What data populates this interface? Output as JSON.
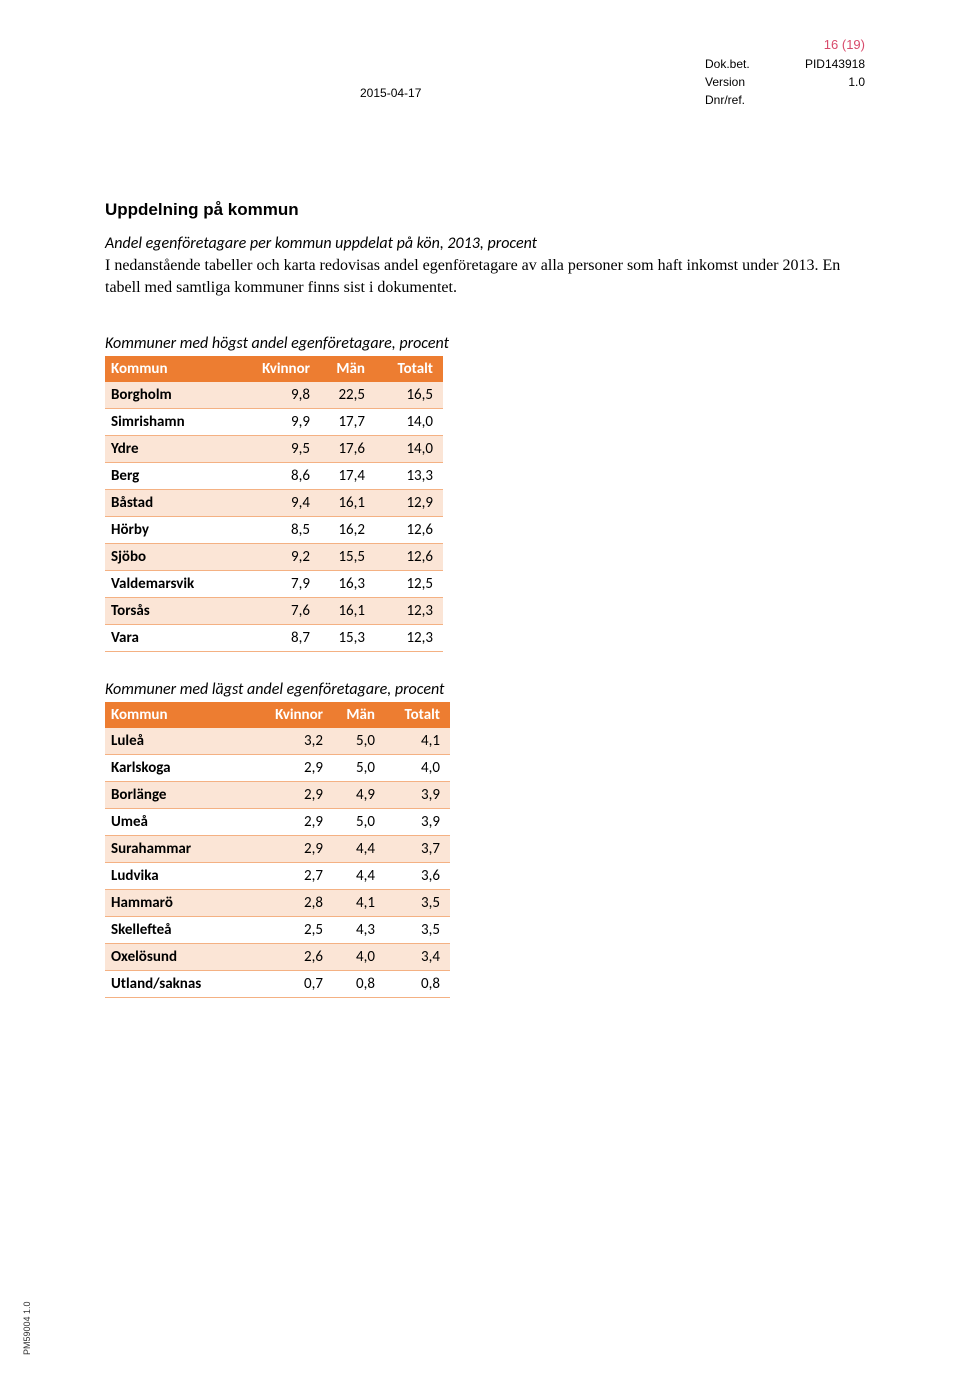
{
  "header": {
    "page_num": "16 (19)",
    "dok_label": "Dok.bet.",
    "dok_value": "PID143918",
    "version_label": "Version",
    "version_value": "1.0",
    "date": "2015-04-17",
    "dnr_label": "Dnr/ref."
  },
  "title": "Uppdelning på kommun",
  "subtitle": "Andel egenföretagare per kommun uppdelat på kön, 2013, procent",
  "body": "I nedanstående tabeller och karta redovisas andel egenföretagare av alla personer som haft inkomst under 2013. En tabell med samtliga kommuner finns sist i dokumentet.",
  "table1": {
    "title": "Kommuner med högst andel egenföretagare, procent",
    "columns": [
      "Kommun",
      "Kvinnor",
      "Män",
      "Totalt"
    ],
    "rows": [
      [
        "Borgholm",
        "9,8",
        "22,5",
        "16,5"
      ],
      [
        "Simrishamn",
        "9,9",
        "17,7",
        "14,0"
      ],
      [
        "Ydre",
        "9,5",
        "17,6",
        "14,0"
      ],
      [
        "Berg",
        "8,6",
        "17,4",
        "13,3"
      ],
      [
        "Båstad",
        "9,4",
        "16,1",
        "12,9"
      ],
      [
        "Hörby",
        "8,5",
        "16,2",
        "12,6"
      ],
      [
        "Sjöbo",
        "9,2",
        "15,5",
        "12,6"
      ],
      [
        "Valdemarsvik",
        "7,9",
        "16,3",
        "12,5"
      ],
      [
        "Torsås",
        "7,6",
        "16,1",
        "12,3"
      ],
      [
        "Vara",
        "8,7",
        "15,3",
        "12,3"
      ]
    ]
  },
  "table2": {
    "title": "Kommuner med lägst andel egenföretagare, procent",
    "columns": [
      "Kommun",
      "Kvinnor",
      "Män",
      "Totalt"
    ],
    "rows": [
      [
        "Luleå",
        "3,2",
        "5,0",
        "4,1"
      ],
      [
        "Karlskoga",
        "2,9",
        "5,0",
        "4,0"
      ],
      [
        "Borlänge",
        "2,9",
        "4,9",
        "3,9"
      ],
      [
        "Umeå",
        "2,9",
        "5,0",
        "3,9"
      ],
      [
        "Surahammar",
        "2,9",
        "4,4",
        "3,7"
      ],
      [
        "Ludvika",
        "2,7",
        "4,4",
        "3,6"
      ],
      [
        "Hammarö",
        "2,8",
        "4,1",
        "3,5"
      ],
      [
        "Skellefteå",
        "2,5",
        "4,3",
        "3,5"
      ],
      [
        "Oxelösund",
        "2,6",
        "4,0",
        "3,4"
      ],
      [
        "Utland/saknas",
        "0,7",
        "0,8",
        "0,8"
      ]
    ]
  },
  "footer": "PM59004 1.0",
  "colors": {
    "header_bg": "#ed7d31",
    "header_text": "#ffffff",
    "row_odd_bg": "#fbe5d6",
    "row_even_bg": "#ffffff",
    "row_border": "#f4b183",
    "page_num_color": "#d84a6b"
  }
}
